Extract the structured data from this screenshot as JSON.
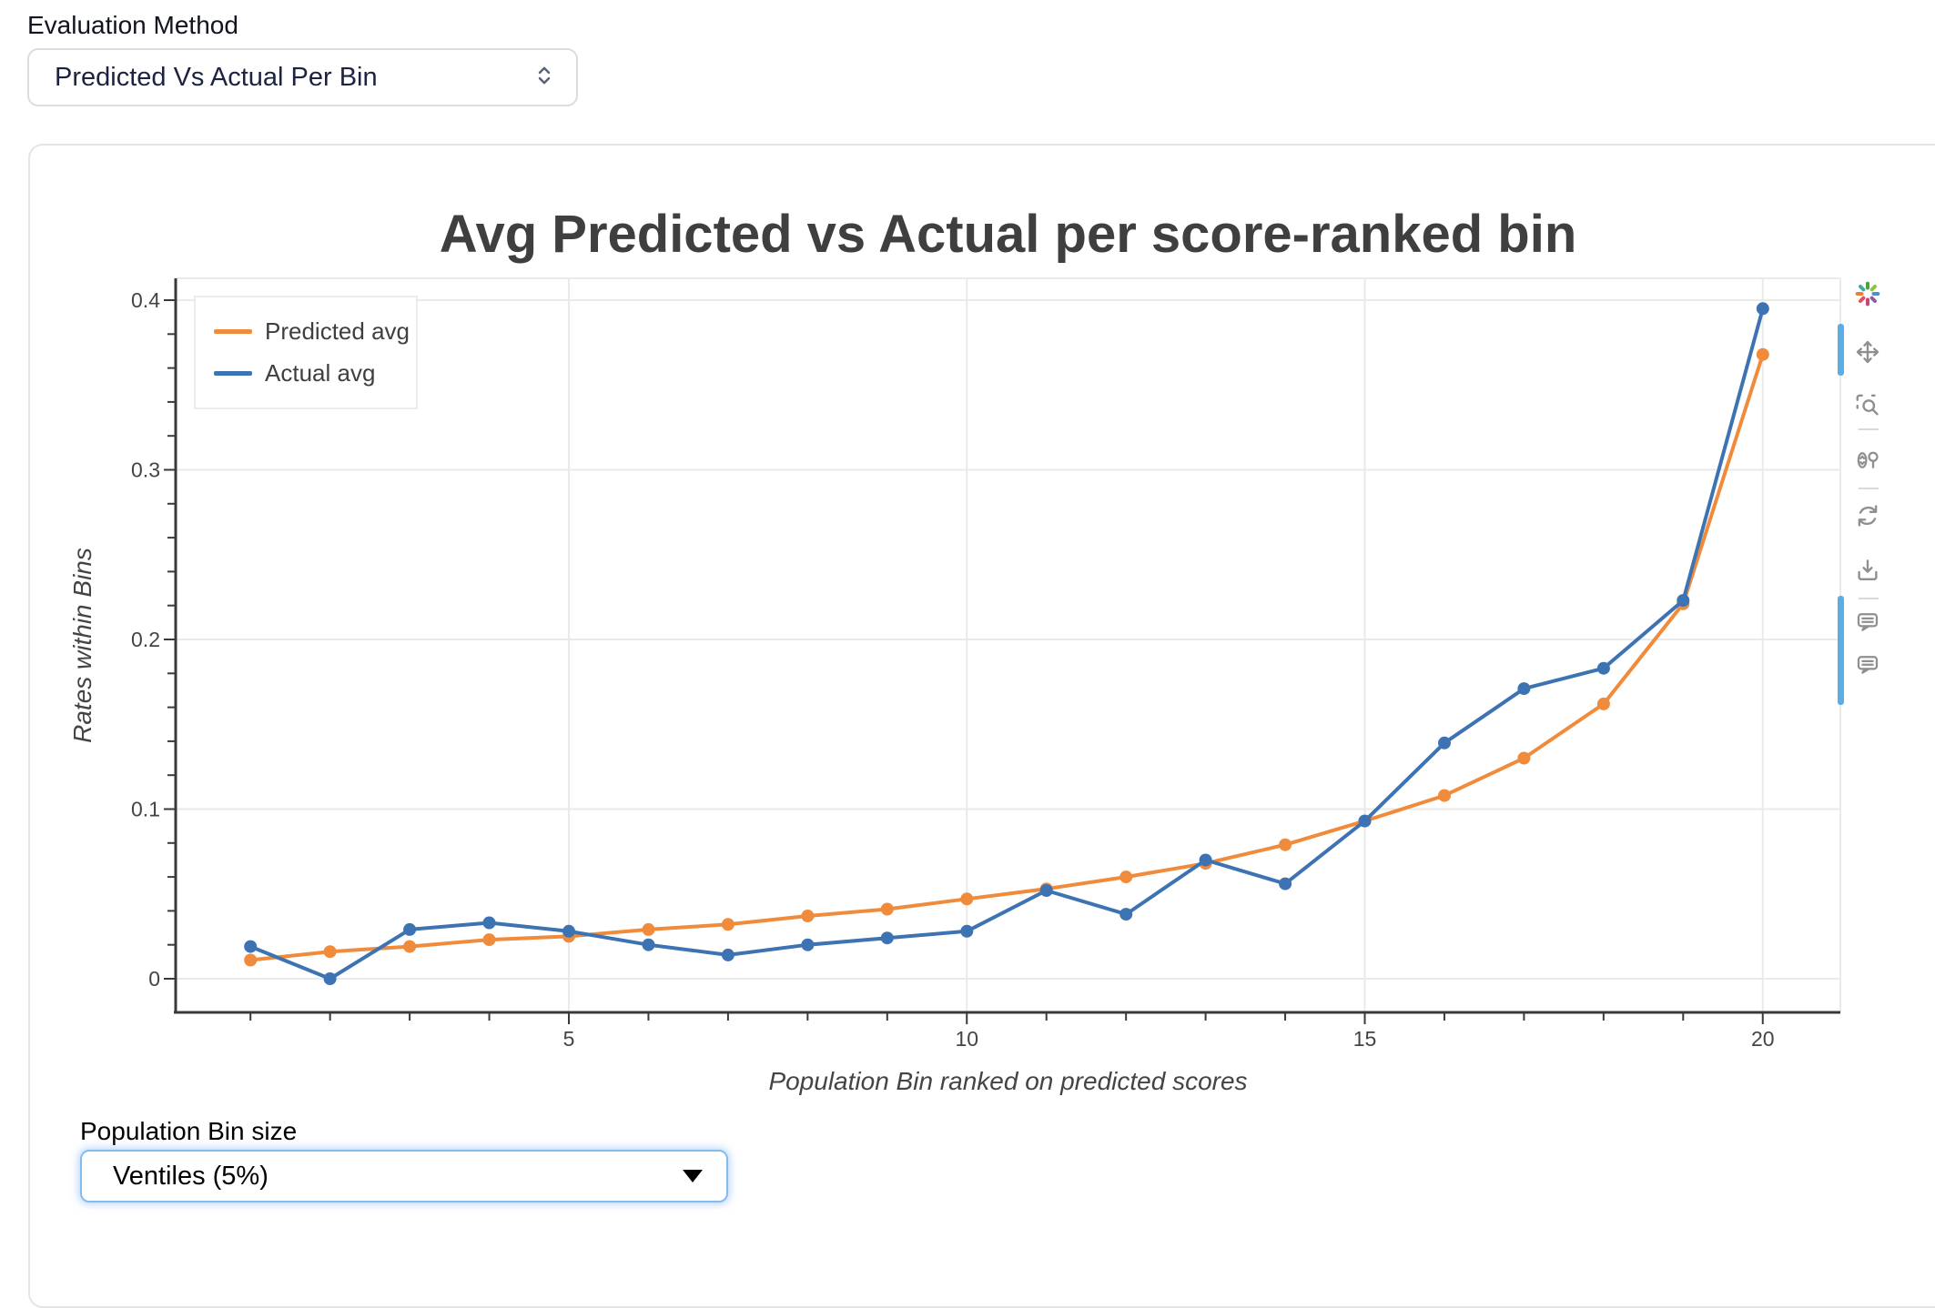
{
  "controls": {
    "evaluation_method": {
      "label": "Evaluation Method",
      "value": "Predicted Vs Actual Per Bin"
    },
    "population_bin_size": {
      "label": "Population Bin size",
      "value": "Ventiles (5%)"
    }
  },
  "chart_data": {
    "type": "line",
    "title": "Avg Predicted vs Actual per score-ranked bin",
    "xlabel": "Population Bin ranked on predicted scores",
    "ylabel": "Rates within Bins",
    "x": [
      1,
      2,
      3,
      4,
      5,
      6,
      7,
      8,
      9,
      10,
      11,
      12,
      13,
      14,
      15,
      16,
      17,
      18,
      19,
      20
    ],
    "series": [
      {
        "name": "Predicted avg",
        "color": "#F08B3B",
        "values": [
          0.011,
          0.016,
          0.019,
          0.023,
          0.025,
          0.029,
          0.032,
          0.037,
          0.041,
          0.047,
          0.053,
          0.06,
          0.068,
          0.079,
          0.093,
          0.108,
          0.13,
          0.162,
          0.221,
          0.368
        ]
      },
      {
        "name": "Actual avg",
        "color": "#3D73B2",
        "values": [
          0.019,
          0.0,
          0.029,
          0.033,
          0.028,
          0.02,
          0.014,
          0.02,
          0.024,
          0.028,
          0.052,
          0.038,
          0.07,
          0.056,
          0.093,
          0.139,
          0.171,
          0.183,
          0.223,
          0.395
        ]
      }
    ],
    "xticks": [
      5,
      10,
      15,
      20
    ],
    "yticks": [
      0,
      0.1,
      0.2,
      0.3,
      0.4
    ],
    "ytick_labels": [
      "0",
      "0.1",
      "0.2",
      "0.3",
      "0.4"
    ],
    "x_minor_step": 1,
    "y_minor_step": 0.02,
    "xlim": [
      0.06,
      20.97
    ],
    "ylim": [
      -0.02,
      0.413
    ],
    "grid": true,
    "legend_position": "top-left",
    "colors": {
      "grid": "#EAEAEA",
      "axis": "#3A3A3A",
      "tick_label": "#444444",
      "title": "#3F3F3F"
    }
  },
  "modebar": {
    "icons": [
      "plotly-logo",
      "pan",
      "box-zoom",
      "compare-data-on-hover",
      "autoscale",
      "download-plot",
      "toggle-hover-closest",
      "toggle-hover-labels"
    ]
  }
}
